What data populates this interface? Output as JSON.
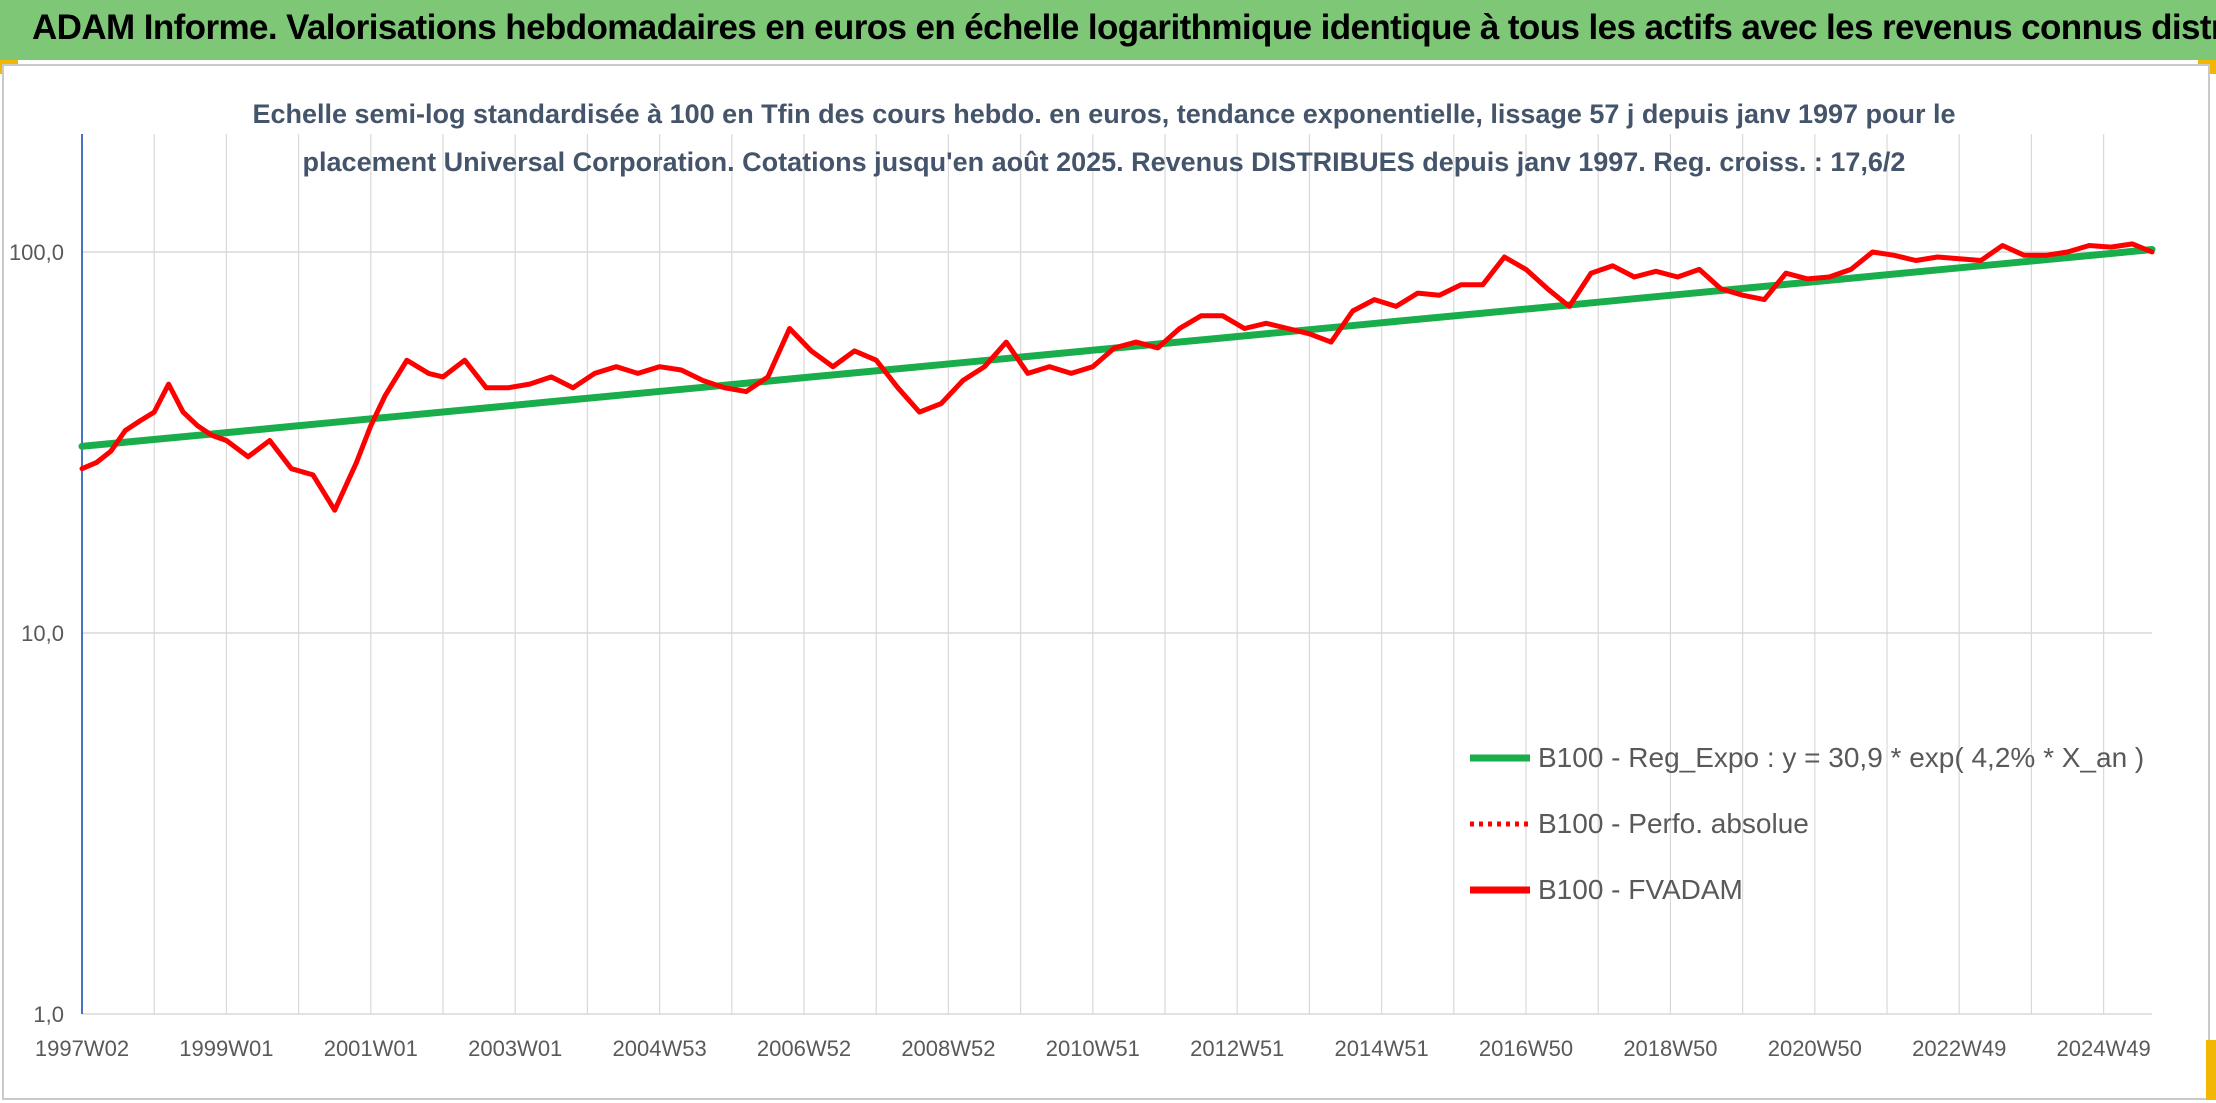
{
  "header": {
    "title": "ADAM Informe. Valorisations hebdomadaires en euros en échelle logarithmique identique à tous les actifs avec les revenus connus distribués"
  },
  "colors": {
    "header_bg": "#7dc777",
    "trend": "#1aad4c",
    "fvadam": "#ff0000",
    "perfo": "#ff0000",
    "grid": "#d9d9d9",
    "accent": "#f2b705"
  },
  "chart_data": {
    "type": "line",
    "title_lines": [
      "Echelle semi-log standardisée à 100 en Tfin des cours hebdo. en euros, tendance exponentielle, lissage 57 j depuis janv 1997 pour le",
      "placement Universal Corporation. Cotations jusqu'en août 2025. Revenus DISTRIBUES depuis janv 1997. Reg. croiss. : 17,6/2"
    ],
    "y_scale": "log",
    "ylim": [
      1,
      100
    ],
    "y_ticks": [
      "1,0",
      "10,0",
      "100,0"
    ],
    "xlim": [
      1997.0,
      2025.67
    ],
    "x_ticks": [
      {
        "label": "1997W02",
        "x": 1997.0
      },
      {
        "label": "1999W01",
        "x": 1999.0
      },
      {
        "label": "2001W01",
        "x": 2001.0
      },
      {
        "label": "2003W01",
        "x": 2003.0
      },
      {
        "label": "2004W53",
        "x": 2005.0
      },
      {
        "label": "2006W52",
        "x": 2007.0
      },
      {
        "label": "2008W52",
        "x": 2009.0
      },
      {
        "label": "2010W51",
        "x": 2011.0
      },
      {
        "label": "2012W51",
        "x": 2013.0
      },
      {
        "label": "2014W51",
        "x": 2015.0
      },
      {
        "label": "2016W50",
        "x": 2017.0
      },
      {
        "label": "2018W50",
        "x": 2019.0
      },
      {
        "label": "2020W50",
        "x": 2021.0
      },
      {
        "label": "2022W49",
        "x": 2023.0
      },
      {
        "label": "2024W49",
        "x": 2025.0
      }
    ],
    "grid": true,
    "legend_position": "bottom-right",
    "series": [
      {
        "name": "B100 - Reg_Expo : y = 30,9 * exp( 4,2% *  X_an )",
        "style": "solid-green",
        "x": [
          1997.0,
          2025.67
        ],
        "y": [
          30.9,
          101.5
        ]
      },
      {
        "name": "B100 - Perfo. absolue",
        "style": "dotted-red",
        "x": [],
        "y": []
      },
      {
        "name": "B100 - FVADAM",
        "style": "solid-red",
        "x": [
          1997.0,
          1997.2,
          1997.4,
          1997.6,
          1997.8,
          1998.0,
          1998.2,
          1998.4,
          1998.6,
          1998.8,
          1999.0,
          1999.3,
          1999.6,
          1999.9,
          2000.2,
          2000.5,
          2000.8,
          2001.0,
          2001.2,
          2001.5,
          2001.8,
          2002.0,
          2002.3,
          2002.6,
          2002.9,
          2003.2,
          2003.5,
          2003.8,
          2004.1,
          2004.4,
          2004.7,
          2005.0,
          2005.3,
          2005.6,
          2005.9,
          2006.2,
          2006.5,
          2006.8,
          2007.1,
          2007.4,
          2007.7,
          2008.0,
          2008.3,
          2008.6,
          2008.9,
          2009.2,
          2009.5,
          2009.8,
          2010.1,
          2010.4,
          2010.7,
          2011.0,
          2011.3,
          2011.6,
          2011.9,
          2012.2,
          2012.5,
          2012.8,
          2013.1,
          2013.4,
          2013.7,
          2014.0,
          2014.3,
          2014.6,
          2014.9,
          2015.2,
          2015.5,
          2015.8,
          2016.1,
          2016.4,
          2016.7,
          2017.0,
          2017.3,
          2017.6,
          2017.9,
          2018.2,
          2018.5,
          2018.8,
          2019.1,
          2019.4,
          2019.7,
          2020.0,
          2020.3,
          2020.6,
          2020.9,
          2021.2,
          2021.5,
          2021.8,
          2022.1,
          2022.4,
          2022.7,
          2023.0,
          2023.3,
          2023.6,
          2023.9,
          2024.2,
          2024.5,
          2024.8,
          2025.1,
          2025.4,
          2025.67
        ],
        "y": [
          27,
          28,
          30,
          34,
          36,
          38,
          45,
          38,
          35,
          33,
          32,
          29,
          32,
          27,
          26,
          21,
          28,
          35,
          42,
          52,
          48,
          47,
          52,
          44,
          44,
          45,
          47,
          44,
          48,
          50,
          48,
          50,
          49,
          46,
          44,
          43,
          47,
          63,
          55,
          50,
          55,
          52,
          44,
          38,
          40,
          46,
          50,
          58,
          48,
          50,
          48,
          50,
          56,
          58,
          56,
          63,
          68,
          68,
          63,
          65,
          63,
          61,
          58,
          70,
          75,
          72,
          78,
          77,
          82,
          82,
          97,
          90,
          80,
          72,
          88,
          92,
          86,
          89,
          86,
          90,
          80,
          77,
          75,
          88,
          85,
          86,
          90,
          100,
          98,
          95,
          97,
          96,
          95,
          104,
          98,
          98,
          100,
          104,
          103,
          105,
          100
        ]
      }
    ]
  }
}
